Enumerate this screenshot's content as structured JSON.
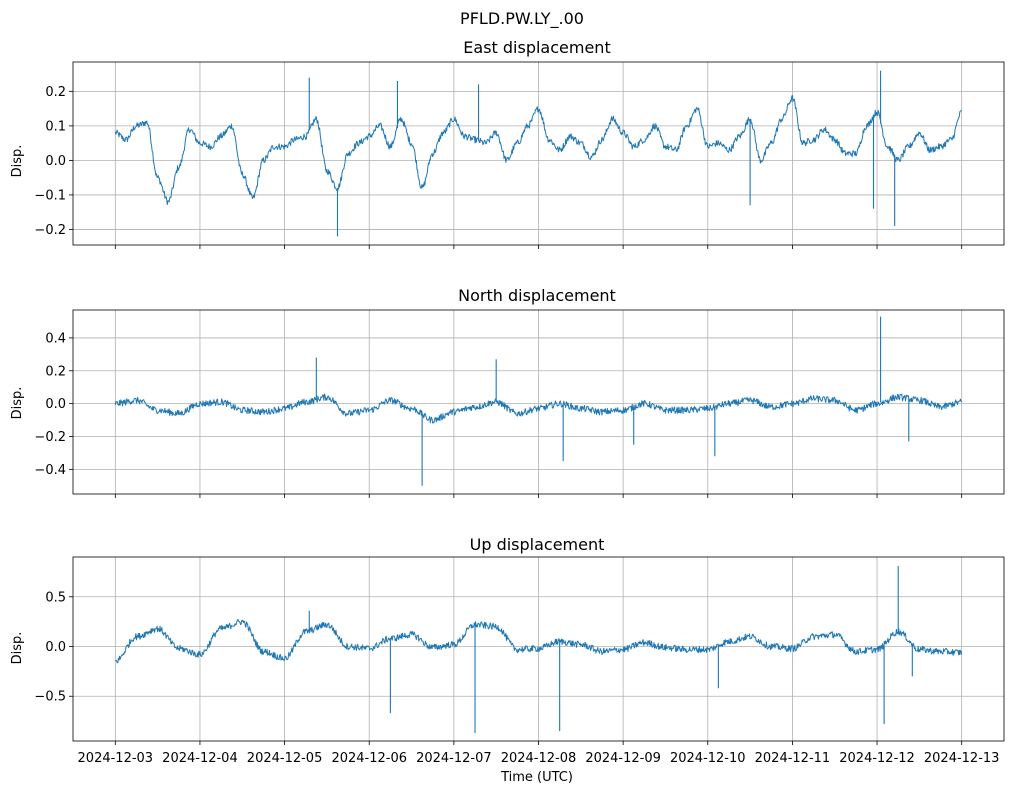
{
  "figure": {
    "suptitle": "PFLD.PW.LY_.00",
    "xlabel": "Time (UTC)",
    "x_tick_labels": [
      "2024-12-03",
      "2024-12-04",
      "2024-12-05",
      "2024-12-06",
      "2024-12-07",
      "2024-12-08",
      "2024-12-09",
      "2024-12-10",
      "2024-12-11",
      "2024-12-12",
      "2024-12-13"
    ],
    "line_color": "#1f77b4",
    "grid_color": "#b0b0b0"
  },
  "chart_data": [
    {
      "type": "line",
      "title": "East displacement",
      "xlabel": "",
      "ylabel": "Disp.",
      "xlim": [
        "2024-12-02T12:00",
        "2024-12-13T12:00"
      ],
      "ylim": [
        -0.245,
        0.285
      ],
      "yticks": [
        -0.2,
        -0.1,
        0.0,
        0.1,
        0.2
      ],
      "ytick_labels": [
        "−0.2",
        "−0.1",
        "0.0",
        "0.1",
        "0.2"
      ],
      "grid": true,
      "series": [
        {
          "x": [
            "2024-12-03T00:00",
            "2024-12-03T03:00",
            "2024-12-03T06:00",
            "2024-12-03T09:00",
            "2024-12-03T12:00",
            "2024-12-03T15:00",
            "2024-12-03T18:00",
            "2024-12-03T21:00",
            "2024-12-04T00:00",
            "2024-12-04T03:00",
            "2024-12-04T06:00",
            "2024-12-04T09:00",
            "2024-12-04T12:00",
            "2024-12-04T15:00",
            "2024-12-04T18:00",
            "2024-12-04T21:00",
            "2024-12-05T00:00",
            "2024-12-05T03:00",
            "2024-12-05T06:00",
            "2024-12-05T09:00",
            "2024-12-05T12:00",
            "2024-12-05T15:00",
            "2024-12-05T18:00",
            "2024-12-05T21:00",
            "2024-12-06T00:00",
            "2024-12-06T03:00",
            "2024-12-06T06:00",
            "2024-12-06T09:00",
            "2024-12-06T12:00",
            "2024-12-06T15:00",
            "2024-12-06T18:00",
            "2024-12-06T21:00",
            "2024-12-07T00:00",
            "2024-12-07T03:00",
            "2024-12-07T06:00",
            "2024-12-07T09:00",
            "2024-12-07T12:00",
            "2024-12-07T15:00",
            "2024-12-07T18:00",
            "2024-12-07T21:00",
            "2024-12-08T00:00",
            "2024-12-08T03:00",
            "2024-12-08T06:00",
            "2024-12-08T09:00",
            "2024-12-08T12:00",
            "2024-12-08T15:00",
            "2024-12-08T18:00",
            "2024-12-08T21:00",
            "2024-12-09T00:00",
            "2024-12-09T03:00",
            "2024-12-09T06:00",
            "2024-12-09T09:00",
            "2024-12-09T12:00",
            "2024-12-09T15:00",
            "2024-12-09T18:00",
            "2024-12-09T21:00",
            "2024-12-10T00:00",
            "2024-12-10T03:00",
            "2024-12-10T06:00",
            "2024-12-10T09:00",
            "2024-12-10T12:00",
            "2024-12-10T15:00",
            "2024-12-10T18:00",
            "2024-12-10T21:00",
            "2024-12-11T00:00",
            "2024-12-11T03:00",
            "2024-12-11T06:00",
            "2024-12-11T09:00",
            "2024-12-11T12:00",
            "2024-12-11T15:00",
            "2024-12-11T18:00",
            "2024-12-11T21:00",
            "2024-12-12T00:00",
            "2024-12-12T03:00",
            "2024-12-12T06:00",
            "2024-12-12T09:00",
            "2024-12-12T12:00",
            "2024-12-12T15:00",
            "2024-12-12T18:00",
            "2024-12-12T21:00",
            "2024-12-13T00:00"
          ],
          "y": [
            0.08,
            0.06,
            0.1,
            0.11,
            -0.05,
            -0.12,
            -0.02,
            0.09,
            0.05,
            0.04,
            0.07,
            0.1,
            -0.04,
            -0.11,
            0.0,
            0.04,
            0.04,
            0.06,
            0.07,
            0.12,
            -0.03,
            -0.08,
            0.02,
            0.05,
            0.07,
            0.1,
            0.04,
            0.12,
            0.05,
            -0.08,
            0.02,
            0.08,
            0.12,
            0.07,
            0.06,
            0.05,
            0.08,
            0.0,
            0.05,
            0.1,
            0.15,
            0.06,
            0.03,
            0.07,
            0.05,
            0.01,
            0.06,
            0.12,
            0.08,
            0.04,
            0.06,
            0.1,
            0.04,
            0.03,
            0.1,
            0.15,
            0.04,
            0.05,
            0.03,
            0.07,
            0.12,
            0.0,
            0.05,
            0.12,
            0.18,
            0.05,
            0.06,
            0.09,
            0.06,
            0.02,
            0.02,
            0.1,
            0.14,
            0.04,
            0.0,
            0.04,
            0.08,
            0.03,
            0.04,
            0.06,
            0.14
          ]
        }
      ],
      "spikes": [
        {
          "x": "2024-12-05T07:00",
          "y": 0.24
        },
        {
          "x": "2024-12-05T15:00",
          "y": -0.22
        },
        {
          "x": "2024-12-06T08:00",
          "y": 0.23
        },
        {
          "x": "2024-12-07T07:00",
          "y": 0.22
        },
        {
          "x": "2024-12-10T12:00",
          "y": -0.13
        },
        {
          "x": "2024-12-11T23:00",
          "y": -0.14
        },
        {
          "x": "2024-12-12T01:00",
          "y": 0.26
        },
        {
          "x": "2024-12-12T05:00",
          "y": -0.19
        }
      ]
    },
    {
      "type": "line",
      "title": "North displacement",
      "xlabel": "",
      "ylabel": "Disp.",
      "xlim": [
        "2024-12-02T12:00",
        "2024-12-13T12:00"
      ],
      "ylim": [
        -0.55,
        0.57
      ],
      "yticks": [
        -0.4,
        -0.2,
        0.0,
        0.2,
        0.4
      ],
      "ytick_labels": [
        "−0.4",
        "−0.2",
        "0.0",
        "0.2",
        "0.4"
      ],
      "grid": true,
      "series": [
        {
          "x": [
            "2024-12-03T00:00",
            "2024-12-03T06:00",
            "2024-12-03T12:00",
            "2024-12-03T18:00",
            "2024-12-04T00:00",
            "2024-12-04T06:00",
            "2024-12-04T12:00",
            "2024-12-04T18:00",
            "2024-12-05T00:00",
            "2024-12-05T06:00",
            "2024-12-05T12:00",
            "2024-12-05T18:00",
            "2024-12-06T00:00",
            "2024-12-06T06:00",
            "2024-12-06T12:00",
            "2024-12-06T18:00",
            "2024-12-07T00:00",
            "2024-12-07T06:00",
            "2024-12-07T12:00",
            "2024-12-07T18:00",
            "2024-12-08T00:00",
            "2024-12-08T06:00",
            "2024-12-08T12:00",
            "2024-12-08T18:00",
            "2024-12-09T00:00",
            "2024-12-09T06:00",
            "2024-12-09T12:00",
            "2024-12-09T18:00",
            "2024-12-10T00:00",
            "2024-12-10T06:00",
            "2024-12-10T12:00",
            "2024-12-10T18:00",
            "2024-12-11T00:00",
            "2024-12-11T06:00",
            "2024-12-11T12:00",
            "2024-12-11T18:00",
            "2024-12-12T00:00",
            "2024-12-12T06:00",
            "2024-12-12T12:00",
            "2024-12-12T18:00",
            "2024-12-13T00:00"
          ],
          "y": [
            0.0,
            0.02,
            -0.04,
            -0.06,
            0.0,
            0.01,
            -0.04,
            -0.05,
            -0.03,
            0.01,
            0.04,
            -0.06,
            -0.04,
            0.02,
            -0.03,
            -0.1,
            -0.05,
            -0.02,
            0.01,
            -0.06,
            -0.03,
            0.0,
            -0.03,
            -0.05,
            -0.04,
            0.0,
            -0.04,
            -0.04,
            -0.03,
            0.0,
            0.02,
            -0.02,
            0.0,
            0.03,
            0.02,
            -0.04,
            0.0,
            0.04,
            0.02,
            -0.02,
            0.01
          ]
        }
      ],
      "spikes": [
        {
          "x": "2024-12-05T09:00",
          "y": 0.28
        },
        {
          "x": "2024-12-06T15:00",
          "y": -0.5
        },
        {
          "x": "2024-12-07T12:00",
          "y": 0.27
        },
        {
          "x": "2024-12-08T07:00",
          "y": -0.35
        },
        {
          "x": "2024-12-09T03:00",
          "y": -0.25
        },
        {
          "x": "2024-12-10T02:00",
          "y": -0.32
        },
        {
          "x": "2024-12-12T01:00",
          "y": 0.53
        },
        {
          "x": "2024-12-12T09:00",
          "y": -0.23
        }
      ]
    },
    {
      "type": "line",
      "title": "Up displacement",
      "xlabel": "Time (UTC)",
      "ylabel": "Disp.",
      "xlim": [
        "2024-12-02T12:00",
        "2024-12-13T12:00"
      ],
      "ylim": [
        -0.95,
        0.9
      ],
      "yticks": [
        -0.5,
        0.0,
        0.5
      ],
      "ytick_labels": [
        "−0.5",
        "0.0",
        "0.5"
      ],
      "grid": true,
      "series": [
        {
          "x": [
            "2024-12-03T00:00",
            "2024-12-03T06:00",
            "2024-12-03T12:00",
            "2024-12-03T18:00",
            "2024-12-04T00:00",
            "2024-12-04T06:00",
            "2024-12-04T12:00",
            "2024-12-04T18:00",
            "2024-12-05T00:00",
            "2024-12-05T06:00",
            "2024-12-05T12:00",
            "2024-12-05T18:00",
            "2024-12-06T00:00",
            "2024-12-06T06:00",
            "2024-12-06T12:00",
            "2024-12-06T18:00",
            "2024-12-07T00:00",
            "2024-12-07T06:00",
            "2024-12-07T12:00",
            "2024-12-07T18:00",
            "2024-12-08T00:00",
            "2024-12-08T06:00",
            "2024-12-08T12:00",
            "2024-12-08T18:00",
            "2024-12-09T00:00",
            "2024-12-09T06:00",
            "2024-12-09T12:00",
            "2024-12-09T18:00",
            "2024-12-10T00:00",
            "2024-12-10T06:00",
            "2024-12-10T12:00",
            "2024-12-10T18:00",
            "2024-12-11T00:00",
            "2024-12-11T06:00",
            "2024-12-11T12:00",
            "2024-12-11T18:00",
            "2024-12-12T00:00",
            "2024-12-12T06:00",
            "2024-12-12T12:00",
            "2024-12-12T18:00",
            "2024-12-13T00:00"
          ],
          "y": [
            -0.15,
            0.1,
            0.18,
            -0.02,
            -0.08,
            0.18,
            0.25,
            -0.05,
            -0.12,
            0.15,
            0.22,
            0.0,
            -0.02,
            0.08,
            0.12,
            -0.01,
            0.02,
            0.22,
            0.2,
            -0.03,
            -0.02,
            0.05,
            0.02,
            -0.05,
            -0.03,
            0.04,
            -0.01,
            -0.03,
            -0.03,
            0.05,
            0.1,
            0.0,
            -0.02,
            0.1,
            0.12,
            -0.05,
            -0.03,
            0.15,
            -0.03,
            -0.05,
            -0.06
          ]
        }
      ],
      "spikes": [
        {
          "x": "2024-12-05T07:00",
          "y": 0.36
        },
        {
          "x": "2024-12-06T06:00",
          "y": -0.67
        },
        {
          "x": "2024-12-07T06:00",
          "y": -0.87
        },
        {
          "x": "2024-12-08T06:00",
          "y": -0.85
        },
        {
          "x": "2024-12-10T03:00",
          "y": -0.42
        },
        {
          "x": "2024-12-12T02:00",
          "y": -0.78
        },
        {
          "x": "2024-12-12T06:00",
          "y": 0.81
        },
        {
          "x": "2024-12-12T10:00",
          "y": -0.3
        }
      ]
    }
  ]
}
